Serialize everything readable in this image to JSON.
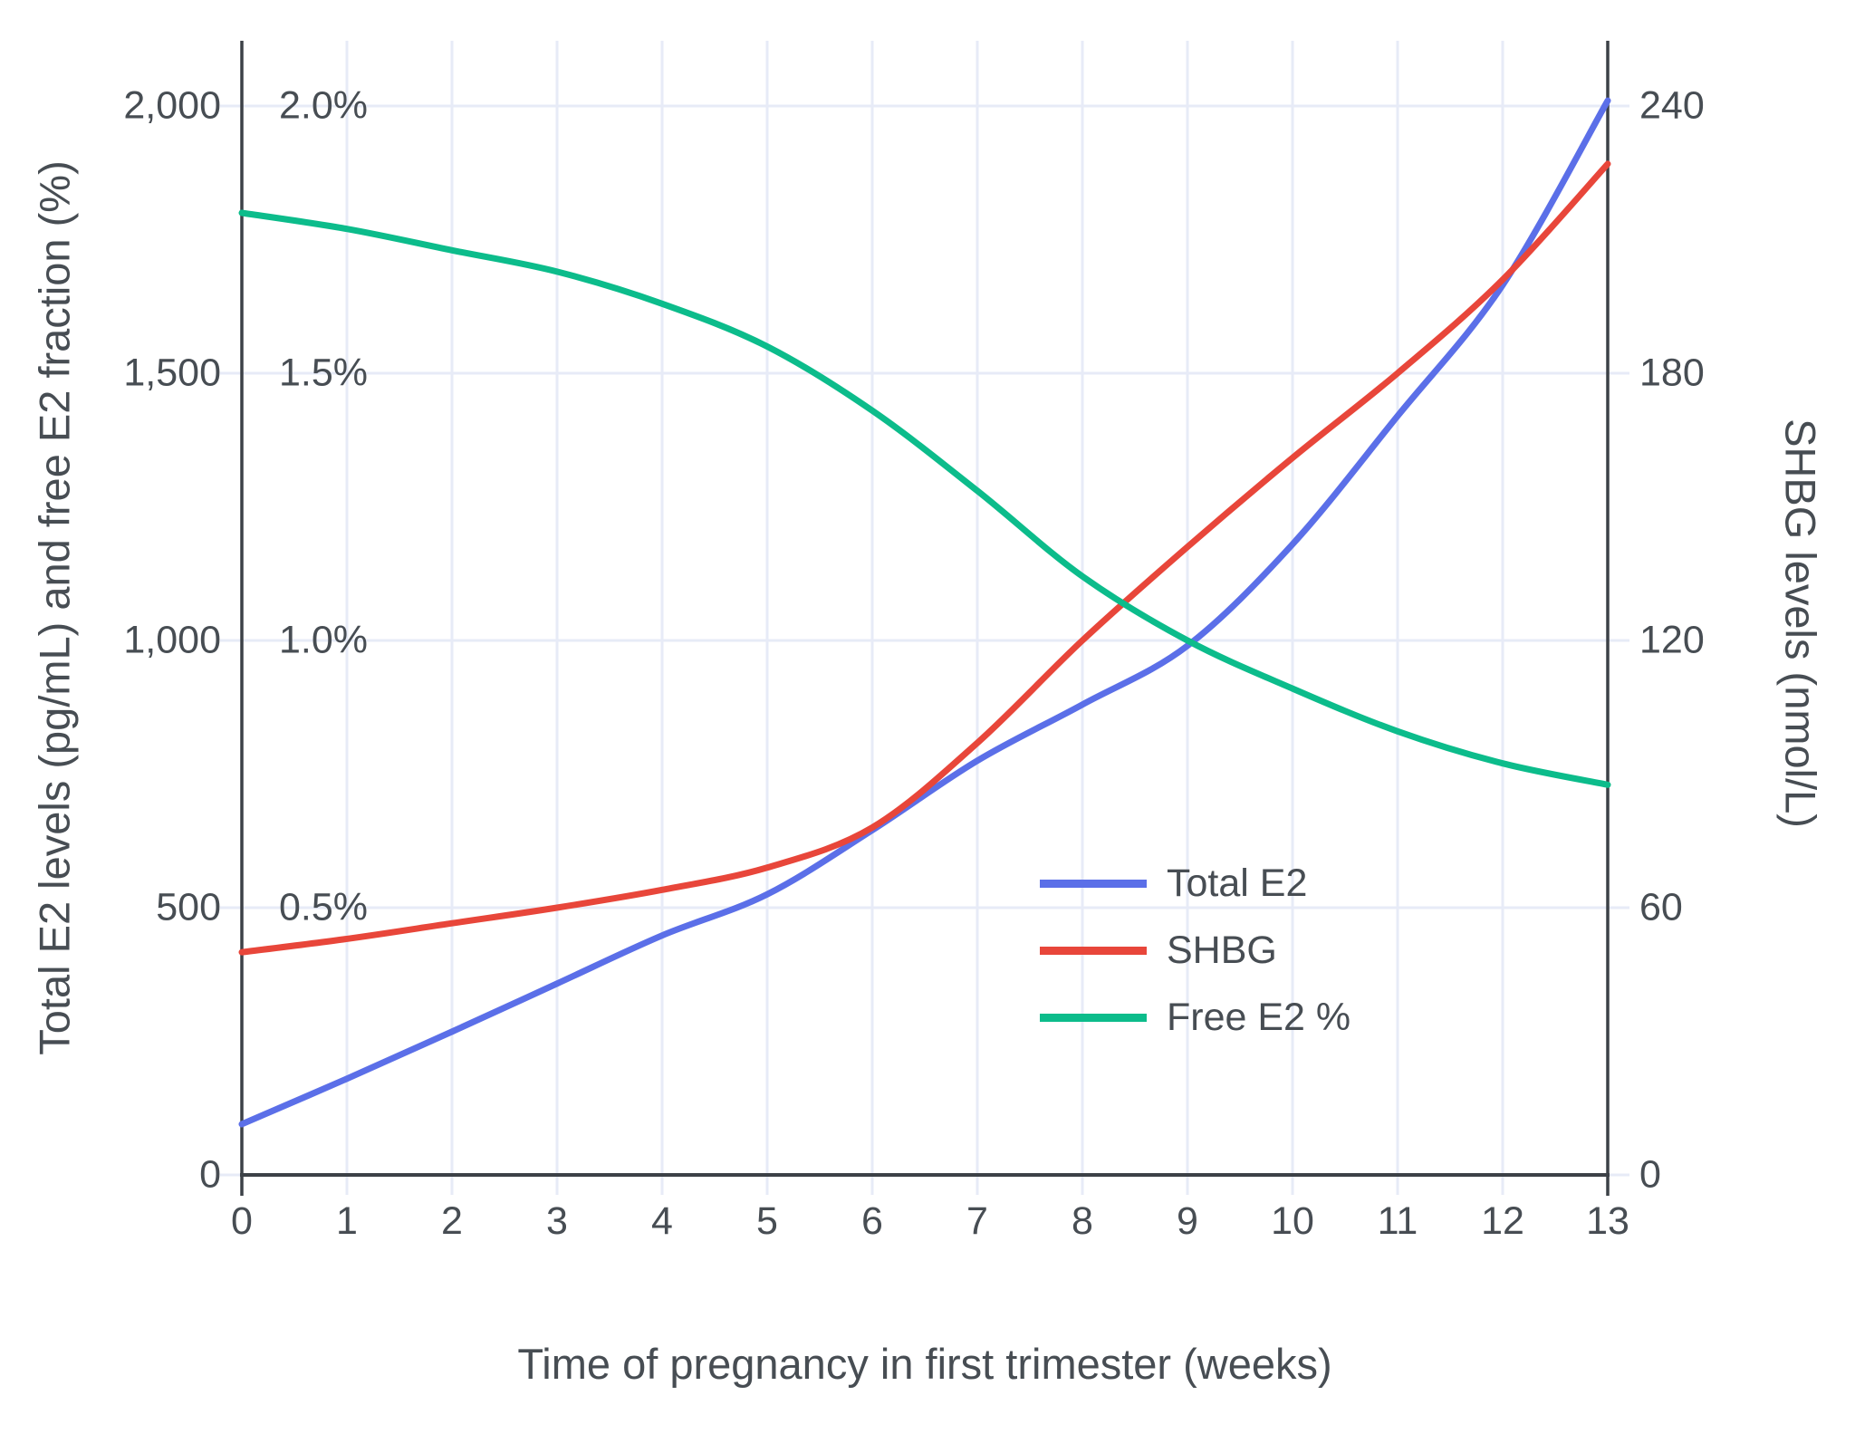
{
  "figure": {
    "background": "#ffffff",
    "grid_color": "#E7EBF7",
    "axis_line_color": "#3C4147",
    "text_color": "#474D53",
    "x_axis": {
      "title": "Time of pregnancy in first trimester (weeks)",
      "tick_values": [
        0,
        1,
        2,
        3,
        4,
        5,
        6,
        7,
        8,
        9,
        10,
        11,
        12,
        13
      ],
      "tick_labels": [
        "0",
        "1",
        "2",
        "3",
        "4",
        "5",
        "6",
        "7",
        "8",
        "9",
        "10",
        "11",
        "12",
        "13"
      ]
    },
    "left_axis": {
      "title": "Total E2 levels (pg/mL) and free E2 fraction (%)",
      "tick_values": [
        0,
        500,
        1000,
        1500,
        2000
      ],
      "tick_labels": [
        "0",
        "500",
        "1,000",
        "1,500",
        "2,000"
      ]
    },
    "right_axis": {
      "title": "SHBG levels (nmol/L)",
      "tick_values": [
        0,
        60,
        120,
        180,
        240
      ],
      "tick_labels": [
        "0",
        "60",
        "120",
        "180",
        "240"
      ]
    },
    "inner_percent_labels": [
      {
        "value": 500,
        "label": "0.5%"
      },
      {
        "value": 1000,
        "label": "1.0%"
      },
      {
        "value": 1500,
        "label": "1.5%"
      },
      {
        "value": 2000,
        "label": "2.0%"
      }
    ],
    "legend": [
      {
        "label": "Total E2",
        "color": "#5B6FE8"
      },
      {
        "label": "SHBG",
        "color": "#E8463A"
      },
      {
        "label": "Free E2 %",
        "color": "#0CBC8B"
      }
    ]
  },
  "chart_data": {
    "type": "line",
    "title": "",
    "xlabel": "Time of pregnancy in first trimester (weeks)",
    "ylabel_left": "Total E2 levels (pg/mL) and free E2 fraction (%)",
    "ylabel_right": "SHBG levels (nmol/L)",
    "xlim": [
      0,
      13
    ],
    "ylim_left_pg_ml": [
      0,
      2000
    ],
    "ylim_left_percent": [
      0,
      2.0
    ],
    "ylim_right_nmol_l": [
      0,
      240
    ],
    "grid": true,
    "legend_position": "inside middle-right",
    "x": [
      0,
      1,
      2,
      3,
      4,
      5,
      6,
      7,
      8,
      9,
      10,
      11,
      12,
      13
    ],
    "series": [
      {
        "name": "Total E2",
        "axis": "left",
        "units": "pg/mL",
        "color": "#5B6FE8",
        "values": [
          95,
          180,
          268,
          358,
          448,
          525,
          645,
          775,
          880,
          990,
          1180,
          1420,
          1665,
          2010
        ]
      },
      {
        "name": "SHBG",
        "axis": "right",
        "units": "nmol/L",
        "color": "#E8463A",
        "values": [
          50,
          53,
          56.5,
          60,
          64,
          69,
          78,
          97,
          120,
          141,
          161,
          180,
          201,
          227
        ]
      },
      {
        "name": "Free E2 %",
        "axis": "percent",
        "units": "%",
        "color": "#0CBC8B",
        "values": [
          1.8,
          1.77,
          1.73,
          1.69,
          1.63,
          1.55,
          1.43,
          1.28,
          1.12,
          1.0,
          0.91,
          0.83,
          0.77,
          0.73
        ]
      }
    ]
  }
}
